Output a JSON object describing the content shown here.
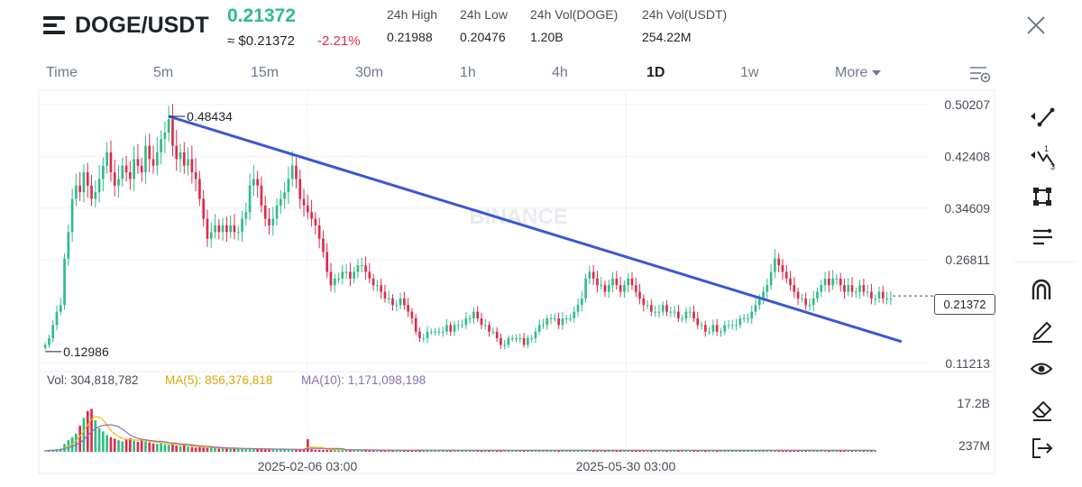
{
  "header": {
    "pair": "DOGE/USDT",
    "last_price": "0.21372",
    "approx_price": "≈ $0.21372",
    "change": "-2.21%",
    "stats": [
      {
        "label": "24h High",
        "value": "0.21988"
      },
      {
        "label": "24h Low",
        "value": "0.20476"
      },
      {
        "label": "24h Vol(DOGE)",
        "value": "1.20B"
      },
      {
        "label": "24h Vol(USDT)",
        "value": "254.22M"
      }
    ]
  },
  "tabs": [
    {
      "label": "Time"
    },
    {
      "label": "5m"
    },
    {
      "label": "15m"
    },
    {
      "label": "30m"
    },
    {
      "label": "1h"
    },
    {
      "label": "4h"
    },
    {
      "label": "1D",
      "active": true
    },
    {
      "label": "1w"
    }
  ],
  "more_label": "More",
  "chart_data": {
    "type": "candlestick",
    "symbol": "DOGE/USDT",
    "interval": "1D",
    "watermark": "BINANCE",
    "price_axis_ticks": [
      "0.50207",
      "0.42408",
      "0.34609",
      "0.26811",
      "0.11213"
    ],
    "volume_axis_ticks": [
      "17.2B",
      "237M"
    ],
    "time_axis_ticks": [
      "2025-02-06 03:00",
      "2025-05-30 03:00"
    ],
    "current_price": "0.21372",
    "high_marker": "0.48434",
    "low_marker": "0.12986",
    "volume_stats": {
      "vol": "Vol: 304,818,782",
      "ma5": "MA(5): 856,376,818",
      "ma10": "MA(10): 1,171,098,198"
    },
    "trend_line": {
      "start_price": 0.48434,
      "end_price": 0.145
    },
    "closes": [
      0.14,
      0.15,
      0.17,
      0.19,
      0.2,
      0.27,
      0.31,
      0.36,
      0.38,
      0.37,
      0.4,
      0.38,
      0.36,
      0.37,
      0.39,
      0.41,
      0.43,
      0.4,
      0.38,
      0.39,
      0.41,
      0.4,
      0.39,
      0.42,
      0.41,
      0.4,
      0.44,
      0.42,
      0.41,
      0.43,
      0.45,
      0.46,
      0.48,
      0.44,
      0.42,
      0.43,
      0.41,
      0.42,
      0.4,
      0.39,
      0.36,
      0.33,
      0.3,
      0.31,
      0.32,
      0.31,
      0.32,
      0.31,
      0.32,
      0.31,
      0.31,
      0.33,
      0.34,
      0.38,
      0.39,
      0.38,
      0.35,
      0.33,
      0.32,
      0.33,
      0.35,
      0.36,
      0.37,
      0.39,
      0.41,
      0.39,
      0.36,
      0.35,
      0.34,
      0.33,
      0.32,
      0.3,
      0.28,
      0.25,
      0.23,
      0.24,
      0.24,
      0.25,
      0.25,
      0.24,
      0.25,
      0.26,
      0.26,
      0.25,
      0.24,
      0.23,
      0.23,
      0.22,
      0.21,
      0.21,
      0.2,
      0.2,
      0.21,
      0.2,
      0.19,
      0.18,
      0.16,
      0.15,
      0.15,
      0.16,
      0.16,
      0.16,
      0.16,
      0.16,
      0.17,
      0.16,
      0.17,
      0.17,
      0.17,
      0.18,
      0.18,
      0.19,
      0.18,
      0.17,
      0.17,
      0.16,
      0.16,
      0.15,
      0.14,
      0.14,
      0.15,
      0.15,
      0.15,
      0.15,
      0.14,
      0.15,
      0.15,
      0.16,
      0.17,
      0.17,
      0.18,
      0.18,
      0.18,
      0.17,
      0.18,
      0.18,
      0.18,
      0.19,
      0.2,
      0.21,
      0.24,
      0.25,
      0.24,
      0.23,
      0.23,
      0.22,
      0.23,
      0.24,
      0.23,
      0.22,
      0.23,
      0.24,
      0.23,
      0.22,
      0.21,
      0.2,
      0.2,
      0.19,
      0.19,
      0.19,
      0.2,
      0.19,
      0.19,
      0.19,
      0.18,
      0.18,
      0.19,
      0.19,
      0.18,
      0.17,
      0.17,
      0.16,
      0.16,
      0.17,
      0.16,
      0.16,
      0.17,
      0.17,
      0.17,
      0.17,
      0.18,
      0.18,
      0.18,
      0.19,
      0.2,
      0.21,
      0.22,
      0.23,
      0.25,
      0.27,
      0.26,
      0.25,
      0.24,
      0.23,
      0.22,
      0.21,
      0.21,
      0.2,
      0.2,
      0.21,
      0.22,
      0.23,
      0.24,
      0.23,
      0.24,
      0.24,
      0.23,
      0.22,
      0.23,
      0.22,
      0.22,
      0.23,
      0.22,
      0.22,
      0.21,
      0.21,
      0.22,
      0.21,
      0.21,
      0.21
    ],
    "volumes": [
      0.2,
      0.3,
      0.4,
      0.5,
      0.6,
      1.5,
      2.2,
      2.8,
      3.5,
      5.0,
      6.5,
      7.8,
      8.2,
      6.0,
      4.5,
      3.9,
      3.2,
      2.8,
      2.5,
      2.2,
      2.0,
      2.4,
      2.6,
      2.1,
      1.9,
      2.3,
      2.0,
      1.8,
      1.6,
      1.5,
      1.7,
      1.4,
      1.3,
      1.5,
      1.2,
      1.1,
      1.4,
      1.0,
      0.9,
      0.8,
      0.9,
      0.8,
      0.7,
      0.8,
      0.7,
      0.6,
      0.7,
      0.6,
      0.6,
      0.7,
      0.6,
      0.6,
      0.5,
      0.6,
      0.5,
      0.5,
      0.6,
      0.5,
      0.5,
      0.5,
      0.4,
      0.5,
      0.5,
      0.4,
      0.4,
      0.5,
      0.4,
      0.5,
      2.4,
      0.5,
      0.4,
      0.4,
      0.4,
      0.5,
      0.4,
      0.4,
      0.3,
      0.4,
      0.4,
      0.3,
      0.4,
      0.3,
      0.3,
      0.4,
      0.3,
      0.3,
      0.3,
      0.3,
      0.3,
      0.3,
      0.3,
      0.3,
      0.3,
      0.3,
      0.3,
      0.3,
      0.4,
      0.3,
      0.3,
      0.3,
      0.3,
      0.3,
      0.3,
      0.3,
      0.3,
      0.3,
      0.3,
      0.3,
      0.3,
      0.3,
      0.3,
      0.3,
      0.3,
      0.3,
      0.3,
      0.3,
      0.3,
      0.3,
      0.3,
      0.3,
      0.3,
      0.3,
      0.3,
      0.3,
      0.3,
      0.3,
      0.3,
      0.3,
      0.3,
      0.3,
      0.3,
      0.3,
      0.3,
      0.3,
      0.3,
      0.3,
      0.3,
      0.3,
      0.3,
      0.3,
      0.3,
      0.3,
      0.3,
      0.3,
      0.3,
      0.3,
      0.3,
      0.3,
      0.3,
      0.3,
      0.3,
      0.3,
      0.3,
      0.3,
      0.3,
      0.3,
      0.3,
      0.3,
      0.3,
      0.3,
      0.3,
      0.3,
      0.3,
      0.3,
      0.3,
      0.3,
      0.3,
      0.3,
      0.3,
      0.3,
      0.3,
      0.3,
      0.3,
      0.3,
      0.3,
      0.3,
      0.3,
      0.3,
      0.3,
      0.3,
      0.3,
      0.3,
      0.3,
      0.3,
      0.3,
      0.3,
      0.3,
      0.3,
      0.3,
      0.3,
      0.3,
      0.3,
      0.3,
      0.3,
      0.3,
      0.3,
      0.3,
      0.3,
      0.3,
      0.3,
      0.3,
      0.3,
      0.3,
      0.3,
      0.3,
      0.3,
      0.3,
      0.3,
      0.3,
      0.3,
      0.3,
      0.3,
      0.3,
      0.3,
      0.3,
      0.3
    ]
  },
  "colors": {
    "up": "#2ebd85",
    "down": "#e0294a",
    "trend": "#3b56d6",
    "ma5": "#f0b90b",
    "ma10": "#8a6fb5",
    "grid": "#eef0f3"
  },
  "icons": {
    "menu": "menu-icon",
    "close": "close-icon",
    "settings": "chart-settings-icon",
    "tools": [
      "trend-line-icon",
      "fibonacci-icon",
      "rectangle-icon",
      "text-lines-icon",
      "magnet-icon",
      "pencil-icon",
      "eye-icon",
      "eraser-icon",
      "exit-icon"
    ]
  }
}
